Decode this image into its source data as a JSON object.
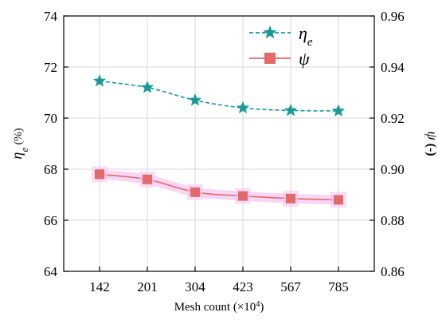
{
  "chart_data": {
    "type": "line",
    "categories": [
      "142",
      "201",
      "304",
      "423",
      "567",
      "785"
    ],
    "xlabel_prefix": "Mesh count (×10",
    "xlabel_exponent": "4",
    "xlabel_suffix": ")",
    "y_left": {
      "label_symbol": "η",
      "label_subscript": "e",
      "label_unit": " (%)",
      "lim": [
        64,
        74
      ],
      "ticks": [
        "64",
        "66",
        "68",
        "70",
        "72",
        "74"
      ]
    },
    "y_right": {
      "label_symbol": "ψ",
      "label_unit": " (-)",
      "lim": [
        0.86,
        0.96
      ],
      "ticks": [
        "0.86",
        "0.88",
        "0.90",
        "0.92",
        "0.94",
        "0.96"
      ]
    },
    "series": [
      {
        "name": "ηe",
        "name_symbol": "η",
        "name_subscript": "e",
        "axis": "left",
        "marker": "star",
        "line_style": "dashed",
        "color": "#1a9a96",
        "values": [
          71.45,
          71.2,
          70.7,
          70.4,
          70.3,
          70.28
        ]
      },
      {
        "name": "ψ",
        "axis": "right",
        "marker": "square",
        "line_style": "solid",
        "color": "#e36a6a",
        "values": [
          0.898,
          0.896,
          0.891,
          0.8895,
          0.8885,
          0.888
        ]
      }
    ],
    "grid": true,
    "legend_position": "top-right"
  }
}
